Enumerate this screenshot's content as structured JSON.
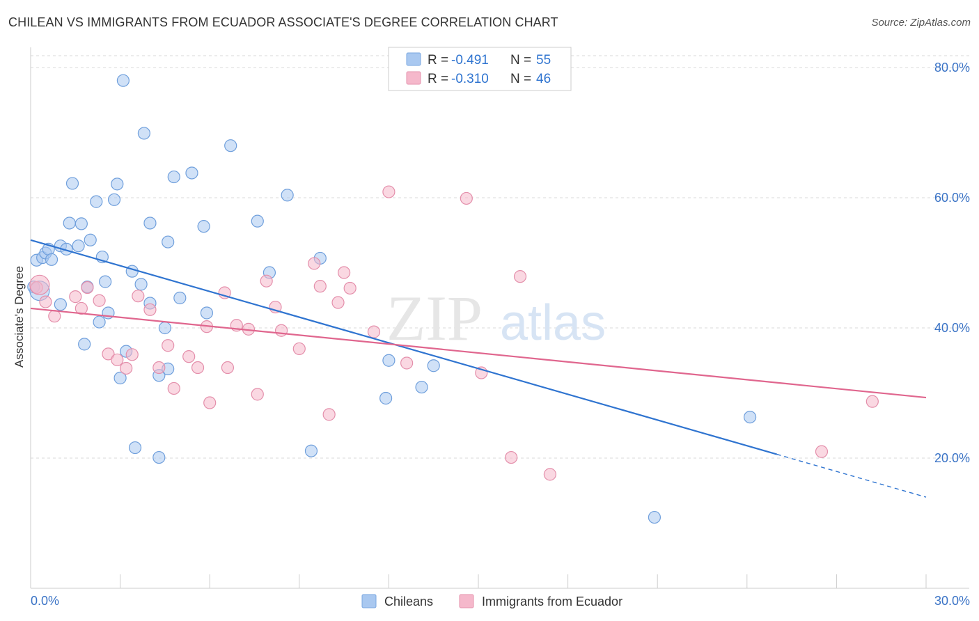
{
  "title": "CHILEAN VS IMMIGRANTS FROM ECUADOR ASSOCIATE'S DEGREE CORRELATION CHART",
  "source": "Source: ZipAtlas.com",
  "watermark": {
    "zip": "ZIP",
    "atlas": "atlas"
  },
  "colors": {
    "chileans_fill": "#a9c8f0",
    "chileans_line": "#2f74d0",
    "ecuador_fill": "#f5b8cb",
    "ecuador_line": "#e0668e",
    "tick_label": "#3a73c6",
    "grid": "#d9d9d9"
  },
  "legend_top": {
    "rows": [
      {
        "r_label": "R = ",
        "r_value": "-0.491",
        "n_label": "N = ",
        "n_value": "55"
      },
      {
        "r_label": "R = ",
        "r_value": "-0.310",
        "n_label": "N = ",
        "n_value": "46"
      }
    ]
  },
  "chart_data": {
    "type": "scatter",
    "title": "CHILEAN VS IMMIGRANTS FROM ECUADOR ASSOCIATE'S DEGREE CORRELATION CHART",
    "xlabel": "",
    "ylabel": "Associate's Degree",
    "xlim": [
      0,
      30
    ],
    "ylim": [
      0,
      80
    ],
    "x_tick_labels": [
      "0.0%",
      "30.0%"
    ],
    "y_ticks": [
      20,
      40,
      60,
      80
    ],
    "y_tick_labels": [
      "20.0%",
      "40.0%",
      "60.0%",
      "80.0%"
    ],
    "grid": true,
    "legend_position": "bottom-center",
    "series": [
      {
        "name": "Chileans",
        "points": [
          [
            0.2,
            50.4
          ],
          [
            0.4,
            50.8
          ],
          [
            0.5,
            51.5
          ],
          [
            0.6,
            52.1
          ],
          [
            0.7,
            50.5
          ],
          [
            1.0,
            52.6
          ],
          [
            1.2,
            52.1
          ],
          [
            1.6,
            52.6
          ],
          [
            1.3,
            56.1
          ],
          [
            1.7,
            56.0
          ],
          [
            2.0,
            53.5
          ],
          [
            2.4,
            50.9
          ],
          [
            2.5,
            47.1
          ],
          [
            1.9,
            46.3
          ],
          [
            1.0,
            43.6
          ],
          [
            2.3,
            40.9
          ],
          [
            2.6,
            42.3
          ],
          [
            1.8,
            37.5
          ],
          [
            3.4,
            48.7
          ],
          [
            3.7,
            46.7
          ],
          [
            4.0,
            43.8
          ],
          [
            4.6,
            53.2
          ],
          [
            4.0,
            56.1
          ],
          [
            5.0,
            44.6
          ],
          [
            5.9,
            42.3
          ],
          [
            5.8,
            55.6
          ],
          [
            7.6,
            56.4
          ],
          [
            8.0,
            48.5
          ],
          [
            9.7,
            50.7
          ],
          [
            8.6,
            60.4
          ],
          [
            1.4,
            62.2
          ],
          [
            2.2,
            59.4
          ],
          [
            2.8,
            59.7
          ],
          [
            2.9,
            62.1
          ],
          [
            4.8,
            63.2
          ],
          [
            5.4,
            63.8
          ],
          [
            3.1,
            78.0
          ],
          [
            3.8,
            69.9
          ],
          [
            6.7,
            68.0
          ],
          [
            3.2,
            36.4
          ],
          [
            3.0,
            32.3
          ],
          [
            4.3,
            32.7
          ],
          [
            4.6,
            33.7
          ],
          [
            4.5,
            40.0
          ],
          [
            12.0,
            35.0
          ],
          [
            13.5,
            34.2
          ],
          [
            13.1,
            30.9
          ],
          [
            11.9,
            29.2
          ],
          [
            3.5,
            21.6
          ],
          [
            4.3,
            20.1
          ],
          [
            9.4,
            21.1
          ],
          [
            24.1,
            26.3
          ],
          [
            20.9,
            10.9
          ],
          [
            0.1,
            46.3
          ],
          [
            0.3,
            45.7
          ]
        ]
      },
      {
        "name": "Immigrants from Ecuador",
        "points": [
          [
            0.2,
            46.2
          ],
          [
            0.5,
            44.0
          ],
          [
            0.8,
            41.8
          ],
          [
            1.5,
            44.8
          ],
          [
            1.7,
            43.0
          ],
          [
            1.9,
            46.2
          ],
          [
            2.3,
            44.2
          ],
          [
            2.6,
            36.0
          ],
          [
            2.9,
            35.1
          ],
          [
            3.2,
            33.8
          ],
          [
            3.4,
            35.9
          ],
          [
            3.6,
            44.9
          ],
          [
            4.0,
            42.8
          ],
          [
            4.3,
            33.9
          ],
          [
            4.6,
            37.3
          ],
          [
            4.8,
            30.7
          ],
          [
            5.3,
            35.6
          ],
          [
            5.6,
            33.9
          ],
          [
            5.9,
            40.2
          ],
          [
            6.0,
            28.5
          ],
          [
            6.5,
            45.4
          ],
          [
            6.6,
            33.9
          ],
          [
            6.9,
            40.4
          ],
          [
            7.3,
            39.8
          ],
          [
            7.6,
            29.8
          ],
          [
            7.9,
            47.2
          ],
          [
            8.2,
            43.2
          ],
          [
            8.4,
            39.6
          ],
          [
            9.0,
            36.8
          ],
          [
            9.5,
            49.9
          ],
          [
            9.7,
            46.4
          ],
          [
            10.0,
            26.7
          ],
          [
            10.3,
            43.9
          ],
          [
            10.5,
            48.5
          ],
          [
            10.7,
            46.1
          ],
          [
            11.5,
            39.4
          ],
          [
            12.0,
            60.9
          ],
          [
            12.6,
            34.6
          ],
          [
            14.6,
            59.9
          ],
          [
            15.1,
            33.1
          ],
          [
            16.1,
            20.1
          ],
          [
            16.4,
            47.9
          ],
          [
            17.4,
            17.5
          ],
          [
            26.5,
            21.0
          ],
          [
            28.2,
            28.7
          ],
          [
            0.3,
            46.6
          ]
        ]
      }
    ],
    "trend_lines": [
      {
        "series": "Chileans",
        "x_start": 0.0,
        "y_start": 53.5,
        "x_solid_end": 25.0,
        "x_end": 30.0,
        "y_end": 14.0
      },
      {
        "series": "Immigrants from Ecuador",
        "x_start": 0.0,
        "y_start": 43.0,
        "x_end": 30.0,
        "y_end": 29.3
      }
    ]
  },
  "bottom_legend": [
    {
      "label": "Chileans"
    },
    {
      "label": "Immigrants from Ecuador"
    }
  ]
}
